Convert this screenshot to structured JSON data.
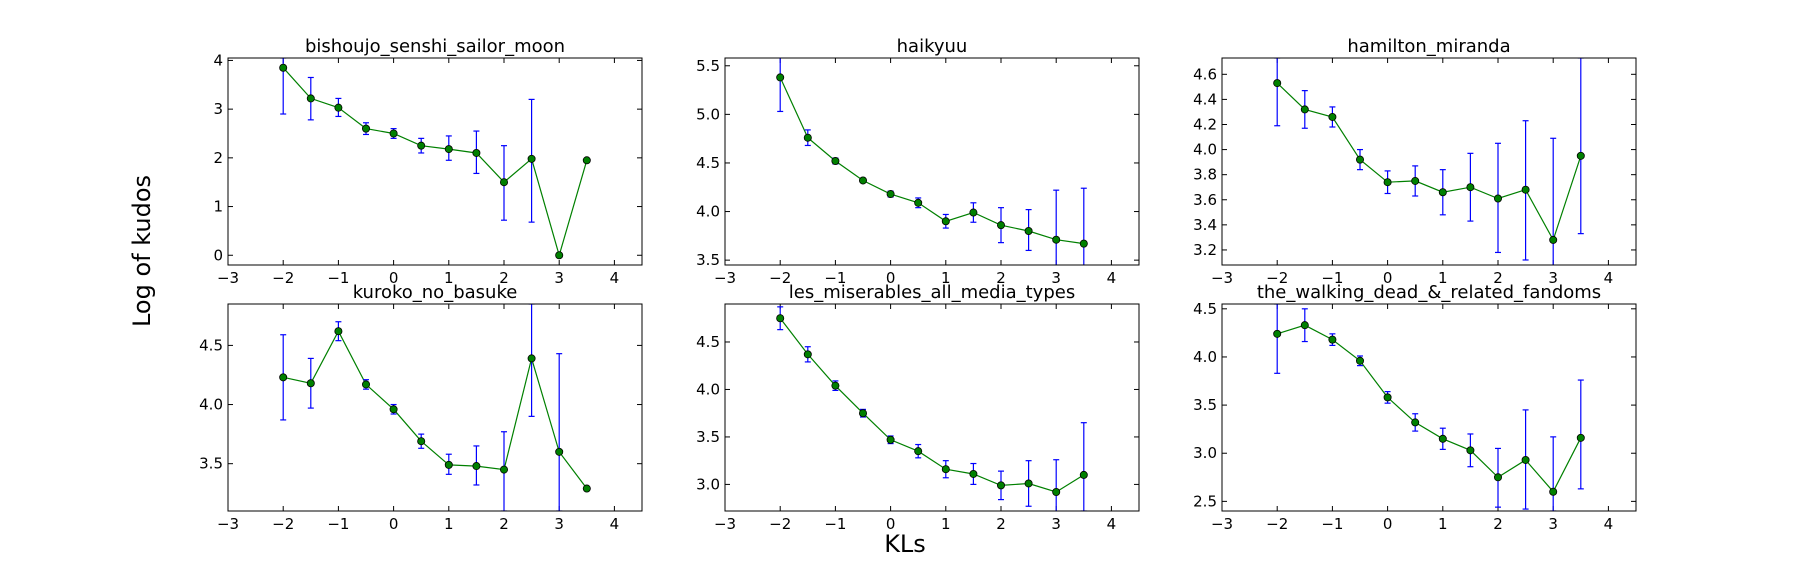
{
  "figure": {
    "xlabel": "KLs",
    "ylabel": "Log of kudos",
    "colors": {
      "line": "#008000",
      "marker": "#008000",
      "marker_edge": "#000000",
      "errorbar": "#0000ff"
    }
  },
  "chart_data": [
    {
      "type": "line",
      "title": "bishoujo_senshi_sailor_moon",
      "x": [
        -2,
        -1.5,
        -1,
        -0.5,
        0,
        0.5,
        1,
        1.5,
        2,
        2.5,
        3,
        3.5
      ],
      "y": [
        3.85,
        3.22,
        3.03,
        2.6,
        2.5,
        2.25,
        2.18,
        2.1,
        1.5,
        1.98,
        0.0,
        1.95
      ],
      "yerr_low": [
        2.9,
        2.78,
        2.85,
        2.48,
        2.4,
        2.1,
        1.95,
        1.68,
        0.72,
        0.68,
        0.0,
        1.95
      ],
      "yerr_high": [
        4.05,
        3.65,
        3.22,
        2.72,
        2.6,
        2.4,
        2.45,
        2.55,
        2.25,
        3.2,
        0.0,
        1.95
      ],
      "xlim": [
        -3,
        4.5
      ],
      "ylim": [
        -0.2,
        4.05
      ],
      "xticks": [
        -3,
        -2,
        -1,
        0,
        1,
        2,
        3,
        4
      ],
      "yticks": [
        0,
        1,
        2,
        3,
        4
      ],
      "ytick_labels": [
        "0",
        "1",
        "2",
        "3",
        "4"
      ]
    },
    {
      "type": "line",
      "title": "haikyuu",
      "x": [
        -2,
        -1.5,
        -1,
        -0.5,
        0,
        0.5,
        1,
        1.5,
        2,
        2.5,
        3,
        3.5
      ],
      "y": [
        5.38,
        4.76,
        4.52,
        4.32,
        4.18,
        4.09,
        3.9,
        3.99,
        3.86,
        3.8,
        3.71,
        3.67
      ],
      "yerr_low": [
        5.03,
        4.68,
        4.49,
        4.3,
        4.15,
        4.04,
        3.83,
        3.89,
        3.68,
        3.6,
        3.2,
        3.1
      ],
      "yerr_high": [
        5.6,
        4.84,
        4.55,
        4.34,
        4.21,
        4.14,
        3.97,
        4.09,
        4.04,
        4.02,
        4.22,
        4.24
      ],
      "xlim": [
        -3,
        4.5
      ],
      "ylim": [
        3.45,
        5.58
      ],
      "xticks": [
        -3,
        -2,
        -1,
        0,
        1,
        2,
        3,
        4
      ],
      "yticks": [
        3.5,
        4.0,
        4.5,
        5.0,
        5.5
      ],
      "ytick_labels": [
        "3.5",
        "4.0",
        "4.5",
        "5.0",
        "5.5"
      ]
    },
    {
      "type": "line",
      "title": "hamilton_miranda",
      "x": [
        -2,
        -1.5,
        -1,
        -0.5,
        0,
        0.5,
        1,
        1.5,
        2,
        2.5,
        3,
        3.5
      ],
      "y": [
        4.53,
        4.32,
        4.26,
        3.92,
        3.74,
        3.75,
        3.66,
        3.7,
        3.61,
        3.68,
        3.28,
        3.95
      ],
      "yerr_low": [
        4.19,
        4.17,
        4.18,
        3.84,
        3.65,
        3.63,
        3.48,
        3.43,
        3.18,
        3.12,
        2.9,
        3.33
      ],
      "yerr_high": [
        4.73,
        4.47,
        4.34,
        4.0,
        3.83,
        3.87,
        3.84,
        3.97,
        4.05,
        4.23,
        4.09,
        4.73
      ],
      "xlim": [
        -3,
        4.5
      ],
      "ylim": [
        3.08,
        4.73
      ],
      "xticks": [
        -3,
        -2,
        -1,
        0,
        1,
        2,
        3,
        4
      ],
      "yticks": [
        3.2,
        3.4,
        3.6,
        3.8,
        4.0,
        4.2,
        4.4,
        4.6
      ],
      "ytick_labels": [
        "3.2",
        "3.4",
        "3.6",
        "3.8",
        "4.0",
        "4.2",
        "4.4",
        "4.6"
      ]
    },
    {
      "type": "line",
      "title": "kuroko_no_basuke",
      "x": [
        -2,
        -1.5,
        -1,
        -0.5,
        0,
        0.5,
        1,
        1.5,
        2,
        2.5,
        3,
        3.5
      ],
      "y": [
        4.23,
        4.18,
        4.62,
        4.17,
        3.96,
        3.69,
        3.49,
        3.48,
        3.45,
        4.39,
        3.6,
        3.29
      ],
      "yerr_low": [
        3.87,
        3.97,
        4.54,
        4.13,
        3.92,
        3.63,
        3.41,
        3.32,
        3.1,
        3.9,
        3.1,
        3.29
      ],
      "yerr_high": [
        4.59,
        4.39,
        4.7,
        4.21,
        4.0,
        3.75,
        3.58,
        3.65,
        3.77,
        4.85,
        4.43,
        3.29
      ],
      "xlim": [
        -3,
        4.5
      ],
      "ylim": [
        3.1,
        4.85
      ],
      "xticks": [
        -3,
        -2,
        -1,
        0,
        1,
        2,
        3,
        4
      ],
      "yticks": [
        3.5,
        4.0,
        4.5
      ],
      "ytick_labels": [
        "3.5",
        "4.0",
        "4.5"
      ]
    },
    {
      "type": "line",
      "title": "les_miserables_all_media_types",
      "x": [
        -2,
        -1.5,
        -1,
        -0.5,
        0,
        0.5,
        1,
        1.5,
        2,
        2.5,
        3,
        3.5
      ],
      "y": [
        4.75,
        4.37,
        4.04,
        3.75,
        3.47,
        3.35,
        3.16,
        3.11,
        2.99,
        3.01,
        2.92,
        3.1
      ],
      "yerr_low": [
        4.63,
        4.29,
        3.99,
        3.71,
        3.43,
        3.28,
        3.07,
        3.0,
        2.84,
        2.77,
        2.58,
        2.72
      ],
      "yerr_high": [
        4.87,
        4.45,
        4.09,
        3.79,
        3.51,
        3.42,
        3.25,
        3.22,
        3.14,
        3.25,
        3.26,
        3.65
      ],
      "xlim": [
        -3,
        4.5
      ],
      "ylim": [
        2.72,
        4.9
      ],
      "xticks": [
        -3,
        -2,
        -1,
        0,
        1,
        2,
        3,
        4
      ],
      "yticks": [
        3.0,
        3.5,
        4.0,
        4.5
      ],
      "ytick_labels": [
        "3.0",
        "3.5",
        "4.0",
        "4.5"
      ]
    },
    {
      "type": "line",
      "title": "the_walking_dead_&_related_fandoms",
      "x": [
        -2,
        -1.5,
        -1,
        -0.5,
        0,
        0.5,
        1,
        1.5,
        2,
        2.5,
        3,
        3.5
      ],
      "y": [
        4.24,
        4.33,
        4.18,
        3.96,
        3.58,
        3.32,
        3.15,
        3.03,
        2.75,
        2.93,
        2.6,
        3.16
      ],
      "yerr_low": [
        3.83,
        4.16,
        4.12,
        3.91,
        3.52,
        3.23,
        3.04,
        2.86,
        2.44,
        2.42,
        2.4,
        2.63
      ],
      "yerr_high": [
        4.55,
        4.5,
        4.24,
        4.01,
        3.64,
        3.41,
        3.26,
        3.2,
        3.05,
        3.45,
        3.17,
        3.76
      ],
      "xlim": [
        -3,
        4.5
      ],
      "ylim": [
        2.4,
        4.55
      ],
      "xticks": [
        -3,
        -2,
        -1,
        0,
        1,
        2,
        3,
        4
      ],
      "yticks": [
        2.5,
        3.0,
        3.5,
        4.0,
        4.5
      ],
      "ytick_labels": [
        "2.5",
        "3.0",
        "3.5",
        "4.0",
        "4.5"
      ]
    }
  ]
}
